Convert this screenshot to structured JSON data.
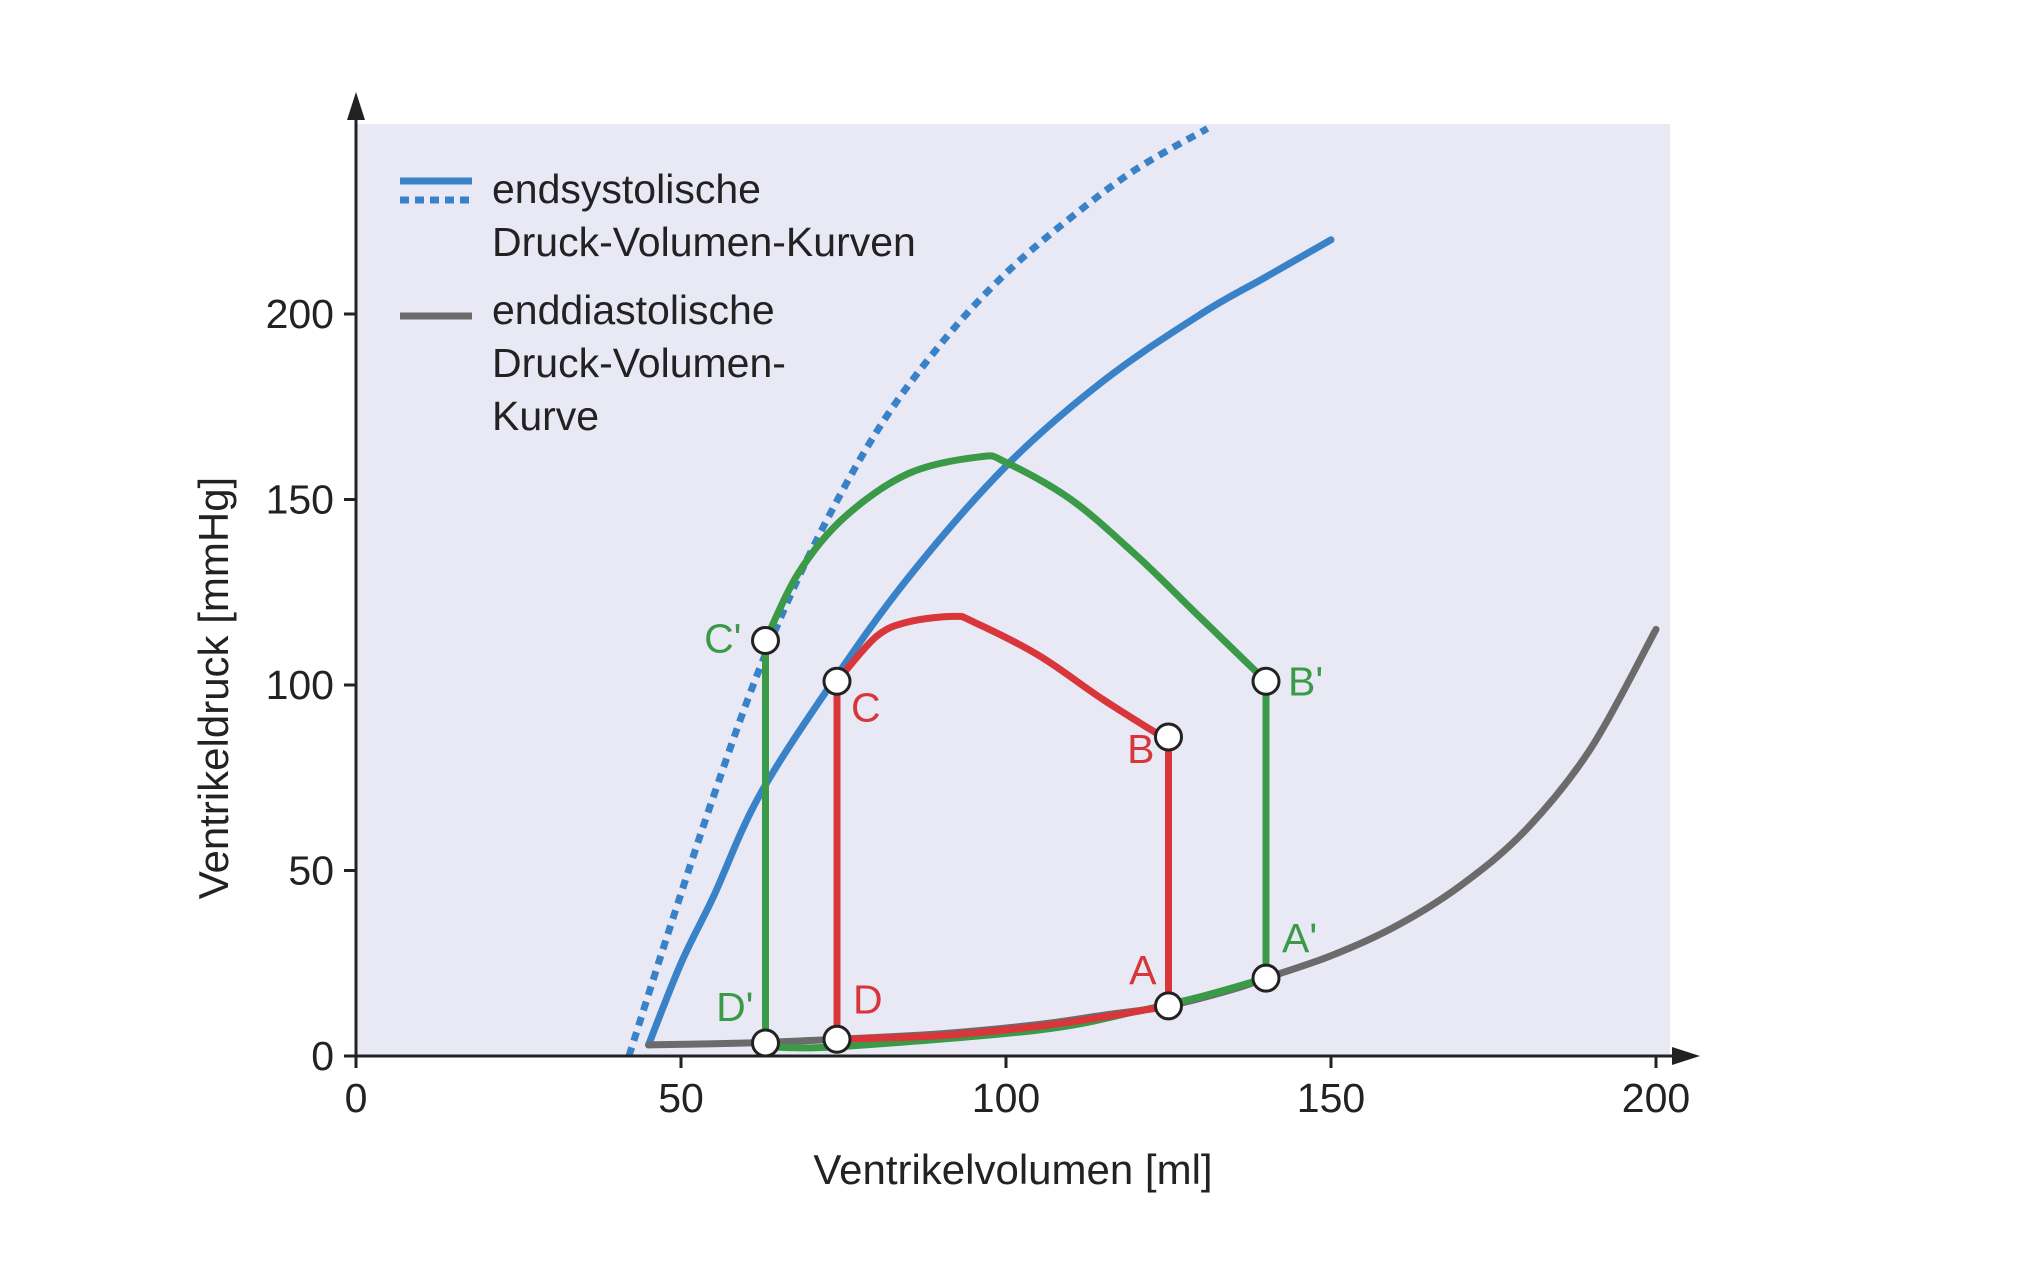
{
  "colors": {
    "plot_bg": "#e9e9f5",
    "esp": "#3a82c8",
    "edp": "#6b6b6b",
    "green": "#3a9a48",
    "red": "#d8363a",
    "axis": "#222222"
  },
  "chart_data": {
    "type": "line",
    "title": "",
    "xlabel": "Ventrikelvolumen [ml]",
    "ylabel": "Ventrikeldruck [mmHg]",
    "xlim": [
      0,
      200
    ],
    "ylim": [
      0,
      250
    ],
    "x_ticks": [
      "0",
      "50",
      "100",
      "150",
      "200"
    ],
    "y_ticks": [
      "0",
      "50",
      "100",
      "150",
      "200"
    ],
    "x_tick_values": [
      0,
      50,
      100,
      150,
      200
    ],
    "y_tick_values": [
      0,
      50,
      100,
      150,
      200
    ],
    "grid": false,
    "legend_position": "top-left",
    "legend": [
      {
        "label_lines": [
          "endsystolische",
          "Druck-Volumen-Kurven"
        ],
        "style": "solid+dotted",
        "color_key": "esp"
      },
      {
        "label_lines": [
          "enddiastolische",
          "Druck-Volumen-",
          "Kurve"
        ],
        "style": "solid",
        "color_key": "edp"
      }
    ],
    "series": [
      {
        "id": "esp_dotted",
        "color_key": "esp",
        "dash": true,
        "x": [
          42,
          48,
          55,
          62,
          70,
          80,
          90,
          100,
          110,
          120,
          131
        ],
        "y": [
          0,
          33,
          70,
          104,
          136,
          168,
          192,
          211,
          226,
          239,
          250
        ]
      },
      {
        "id": "esp_solid",
        "color_key": "esp",
        "dash": false,
        "x": [
          45,
          50,
          55,
          62,
          73,
          85,
          100,
          115,
          130,
          140,
          150
        ],
        "y": [
          3,
          25,
          43,
          70,
          100,
          129,
          159,
          182,
          200,
          210,
          220
        ]
      },
      {
        "id": "edp",
        "color_key": "edp",
        "dash": false,
        "x": [
          45,
          60,
          74,
          90,
          105,
          115,
          125,
          135,
          140,
          150,
          160,
          170,
          180,
          190,
          200
        ],
        "y": [
          3,
          3.5,
          4.5,
          6,
          8.5,
          11,
          13.5,
          18,
          21,
          27,
          35,
          46,
          61,
          83,
          115
        ]
      },
      {
        "id": "loop_green",
        "color_key": "green",
        "dash": false,
        "x": [
          140,
          140,
          130,
          120,
          110,
          100,
          96,
          85,
          75,
          68,
          63,
          63,
          63,
          74,
          105,
          120,
          130,
          140
        ],
        "y": [
          21,
          101,
          118,
          135,
          150,
          160,
          161.5,
          157,
          145,
          130,
          112,
          112,
          2.5,
          2.5,
          7,
          12,
          16,
          21
        ]
      },
      {
        "id": "loop_red",
        "color_key": "red",
        "dash": false,
        "x": [
          125,
          125,
          115,
          105,
          95,
          92,
          85,
          80,
          74,
          74,
          74,
          90,
          105,
          115,
          125
        ],
        "y": [
          14,
          85,
          96,
          108,
          117,
          118.5,
          117,
          113,
          101,
          101,
          4.5,
          5.5,
          8,
          10.5,
          13.5
        ]
      }
    ],
    "points": [
      {
        "label": "C'",
        "x": 63,
        "y": 112,
        "color_key": "green",
        "side": "left"
      },
      {
        "label": "B'",
        "x": 140,
        "y": 101,
        "color_key": "green",
        "side": "right"
      },
      {
        "label": "A'",
        "x": 140,
        "y": 21,
        "color_key": "green",
        "side": "upright"
      },
      {
        "label": "D'",
        "x": 63,
        "y": 3.5,
        "color_key": "green",
        "side": "upleft"
      },
      {
        "label": "C",
        "x": 74,
        "y": 101,
        "color_key": "red",
        "side": "downright"
      },
      {
        "label": "B",
        "x": 125,
        "y": 86,
        "color_key": "red",
        "side": "downleft"
      },
      {
        "label": "A",
        "x": 125,
        "y": 13.5,
        "color_key": "red",
        "side": "upleft"
      },
      {
        "label": "D",
        "x": 74,
        "y": 4.5,
        "color_key": "red",
        "side": "upright"
      }
    ]
  }
}
